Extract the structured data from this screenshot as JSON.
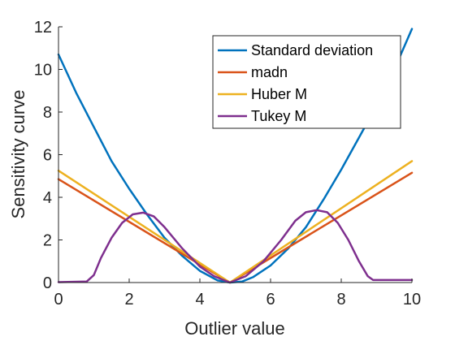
{
  "chart_data": {
    "type": "line",
    "xlabel": "Outlier value",
    "ylabel": "Sensitivity curve",
    "xlim": [
      0,
      10
    ],
    "ylim": [
      0,
      12
    ],
    "xticks": [
      0,
      2,
      4,
      6,
      8,
      10
    ],
    "yticks": [
      0,
      2,
      4,
      6,
      8,
      10,
      12
    ],
    "grid": false,
    "legend_position": "top-right",
    "series": [
      {
        "name": "Standard deviation",
        "color": "#0072BD",
        "x": [
          0,
          0.5,
          1,
          1.5,
          2,
          2.5,
          3,
          3.5,
          4,
          4.5,
          4.85,
          5.2,
          5.5,
          6,
          6.5,
          7,
          7.5,
          8,
          8.5,
          9,
          9.5,
          10
        ],
        "y": [
          10.7,
          8.9,
          7.3,
          5.7,
          4.4,
          3.2,
          2.1,
          1.25,
          0.55,
          0.1,
          0.0,
          0.05,
          0.25,
          0.8,
          1.6,
          2.6,
          3.9,
          5.3,
          6.8,
          8.3,
          10.0,
          11.9
        ]
      },
      {
        "name": "madn",
        "color": "#D95319",
        "x": [
          0,
          4.85,
          10
        ],
        "y": [
          4.85,
          0.0,
          5.15
        ]
      },
      {
        "name": "Huber M",
        "color": "#EDB120",
        "x": [
          0,
          4.85,
          10
        ],
        "y": [
          5.25,
          0.0,
          5.7
        ]
      },
      {
        "name": "Tukey M",
        "color": "#7E2F8E",
        "x": [
          0,
          0.8,
          1.0,
          1.2,
          1.5,
          1.8,
          2.1,
          2.4,
          2.7,
          3.0,
          3.5,
          4.0,
          4.4,
          4.85,
          5.3,
          5.8,
          6.3,
          6.7,
          7.0,
          7.3,
          7.6,
          7.9,
          8.2,
          8.5,
          8.75,
          8.9,
          9.2,
          10
        ],
        "y": [
          0.02,
          0.05,
          0.35,
          1.15,
          2.1,
          2.8,
          3.2,
          3.28,
          3.1,
          2.6,
          1.6,
          0.75,
          0.3,
          0.0,
          0.3,
          1.0,
          2.0,
          2.9,
          3.3,
          3.4,
          3.3,
          2.8,
          2.0,
          1.0,
          0.3,
          0.12,
          0.12,
          0.12
        ]
      }
    ]
  }
}
